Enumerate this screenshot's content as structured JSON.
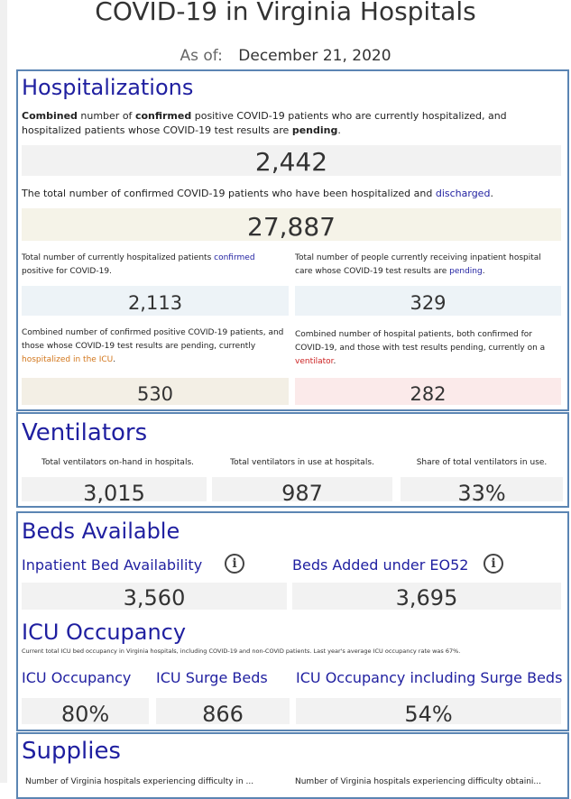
{
  "title": "COVID-19 in Virginia Hospitals",
  "as_of": {
    "label": "As of:",
    "date": "December 21, 2020"
  },
  "hospitalizations": {
    "heading": "Hospitalizations",
    "combined_desc": {
      "t1": "Combined",
      "t2": " number of ",
      "t3": "confirmed",
      "t4": " positive COVID-19 patients who are currently hospitalized, and hospitalized patients whose COVID-19 test results are ",
      "t5": "pending",
      "t6": "."
    },
    "combined_value": "2,442",
    "discharged_desc": {
      "t1": "The total number of confirmed COVID-19 patients who have been hospitalized and ",
      "t2": "discharged",
      "t3": "."
    },
    "discharged_value": "27,887",
    "confirmed_desc": {
      "t1": "Total number of currently hospitalized patients ",
      "t2": "confirmed",
      "t3": " positive for COVID-19."
    },
    "confirmed_value": "2,113",
    "pending_desc": {
      "t1": "Total number of people currently receiving inpatient hospital care whose COVID-19 test results are ",
      "t2": "pending",
      "t3": "."
    },
    "pending_value": "329",
    "icu_desc": {
      "t1": "Combined number of confirmed positive COVID-19 patients, and those whose COVID-19 test results are pending, currently ",
      "t2": "hospitalized in the ICU",
      "t3": "."
    },
    "icu_value": "530",
    "vent_desc": {
      "t1": "Combined number of hospital patients, both confirmed for COVID-19, and those with test results pending, currently on a ",
      "t2": "ventilator",
      "t3": "."
    },
    "vent_value": "282"
  },
  "ventilators": {
    "heading": "Ventilators",
    "onhand_label": "Total ventilators on-hand in hospitals.",
    "onhand_value": "3,015",
    "inuse_label": "Total ventilators in use at hospitals.",
    "inuse_value": "987",
    "share_label": "Share of total ventilators in use.",
    "share_value": "33%"
  },
  "beds": {
    "heading": "Beds Available",
    "inpatient_label": "Inpatient Bed Availability",
    "inpatient_value": "3,560",
    "added_label": "Beds Added under EO52",
    "added_value": "3,695",
    "info_glyph": "i",
    "icu_heading": "ICU Occupancy",
    "icu_note": "Current total ICU bed occupancy in Virginia hospitals, including COVID-19 and non-COVID patients. Last year's average ICU occupancy rate was 67%.",
    "icu_occ_label": "ICU Occupancy",
    "icu_occ_value": "80%",
    "surge_label": "ICU Surge Beds",
    "surge_value": "866",
    "incl_surge_label": "ICU Occupancy including Surge Beds",
    "incl_surge_value": "54%"
  },
  "supplies": {
    "heading": "Supplies",
    "desc_left": "Number of Virginia hospitals experiencing difficulty in ...",
    "desc_right": "Number of Virginia hospitals experiencing difficulty obtaini..."
  }
}
